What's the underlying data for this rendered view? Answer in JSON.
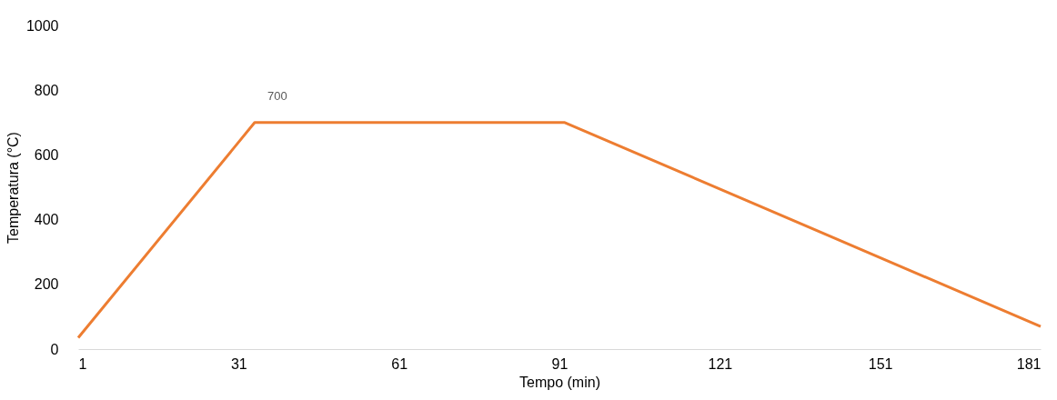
{
  "chart_data": {
    "type": "line",
    "xlabel": "Tempo (min)",
    "ylabel": "Temperatura (°C)",
    "x": [
      1,
      34,
      92,
      181
    ],
    "series": [
      {
        "color": "#ed7d31",
        "values": [
          35,
          700,
          700,
          70
        ]
      }
    ],
    "xlim": [
      1,
      181
    ],
    "xticks": [
      1,
      31,
      61,
      91,
      121,
      151,
      181
    ],
    "ylim": [
      0,
      1000
    ],
    "yticks": [
      0,
      200,
      400,
      600,
      800,
      1000
    ],
    "grid": false,
    "marker": "none",
    "line_style": "solid",
    "annotations": [
      {
        "text": "700",
        "x": 34,
        "y": 700
      }
    ]
  }
}
